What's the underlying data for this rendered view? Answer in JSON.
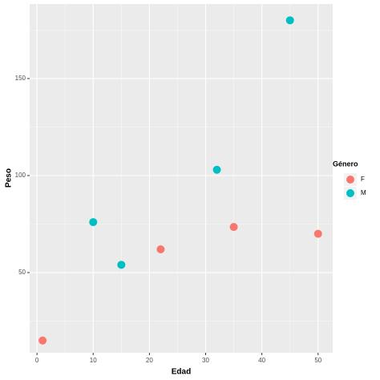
{
  "chart_data": {
    "type": "scatter",
    "x_label": "Edad",
    "y_label": "Peso",
    "legend_title": "Género",
    "legend_position": "right",
    "series": [
      {
        "name": "F",
        "color": "#F8766D",
        "x": [
          1,
          22,
          35,
          50
        ],
        "values": [
          15,
          62,
          73.5,
          70
        ]
      },
      {
        "name": "M",
        "color": "#00BFC4",
        "x": [
          10,
          15,
          32,
          45
        ],
        "values": [
          76,
          54,
          103,
          180
        ]
      }
    ],
    "xlim": [
      -1.3,
      52.6
    ],
    "ylim": [
      8.7,
      188.4
    ],
    "xticks": [
      0,
      10,
      20,
      30,
      40,
      50
    ],
    "yticks": [
      50,
      100,
      150
    ],
    "xminor": [
      5,
      15,
      25,
      35,
      45
    ],
    "yminor": [
      25,
      75,
      125,
      175
    ],
    "grid": true
  }
}
